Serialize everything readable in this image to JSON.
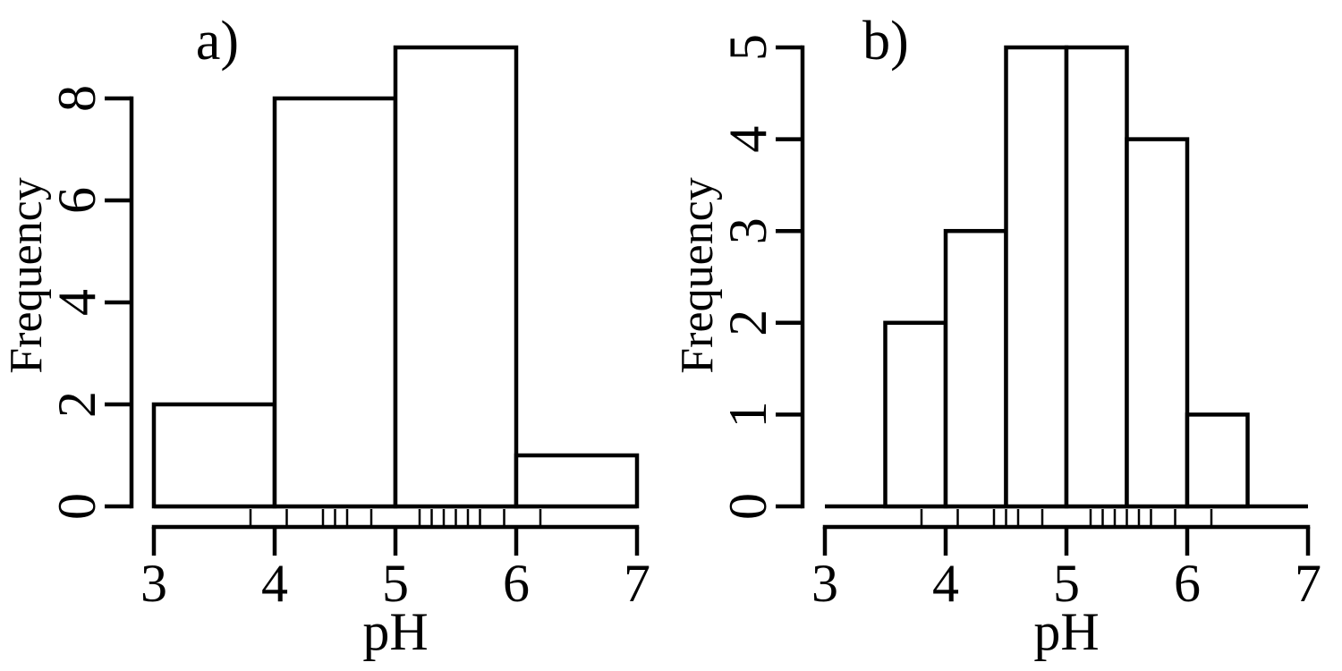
{
  "figure": {
    "background_color": "#ffffff",
    "line_color": "#000000",
    "panel_labels": [
      "a)",
      "b)"
    ]
  },
  "chart_data": [
    {
      "type": "bar",
      "chart_kind": "histogram-with-rug",
      "panel_label": "a)",
      "title": "",
      "xlabel": "pH",
      "ylabel": "Frequency",
      "xlim": [
        3,
        7
      ],
      "ylim": [
        0,
        9
      ],
      "x_ticks": [
        3,
        4,
        5,
        6,
        7
      ],
      "y_ticks": [
        0,
        2,
        4,
        6,
        8
      ],
      "bin_breaks": [
        3,
        4,
        5,
        6,
        7
      ],
      "counts": [
        2,
        8,
        9,
        1
      ],
      "rug_values": [
        3.8,
        4.1,
        4.4,
        4.5,
        4.6,
        4.8,
        5.2,
        5.3,
        5.4,
        5.5,
        5.6,
        5.7,
        5.9,
        6.2
      ],
      "grid": false,
      "legend": "none",
      "bar_fill": "#ffffff",
      "bar_stroke": "#000000"
    },
    {
      "type": "bar",
      "chart_kind": "histogram-with-rug",
      "panel_label": "b)",
      "title": "",
      "xlabel": "pH",
      "ylabel": "Frequency",
      "xlim": [
        3,
        7
      ],
      "ylim": [
        0,
        5
      ],
      "x_ticks": [
        3,
        4,
        5,
        6,
        7
      ],
      "y_ticks": [
        0,
        1,
        2,
        3,
        4,
        5
      ],
      "bin_breaks": [
        3.5,
        4,
        4.5,
        5,
        5.5,
        6,
        6.5
      ],
      "counts": [
        2,
        3,
        5,
        5,
        4,
        1
      ],
      "rug_values": [
        3.8,
        4.1,
        4.4,
        4.5,
        4.6,
        4.8,
        5.2,
        5.3,
        5.4,
        5.5,
        5.6,
        5.7,
        5.9,
        6.2
      ],
      "grid": false,
      "legend": "none",
      "bar_fill": "#ffffff",
      "bar_stroke": "#000000"
    }
  ]
}
